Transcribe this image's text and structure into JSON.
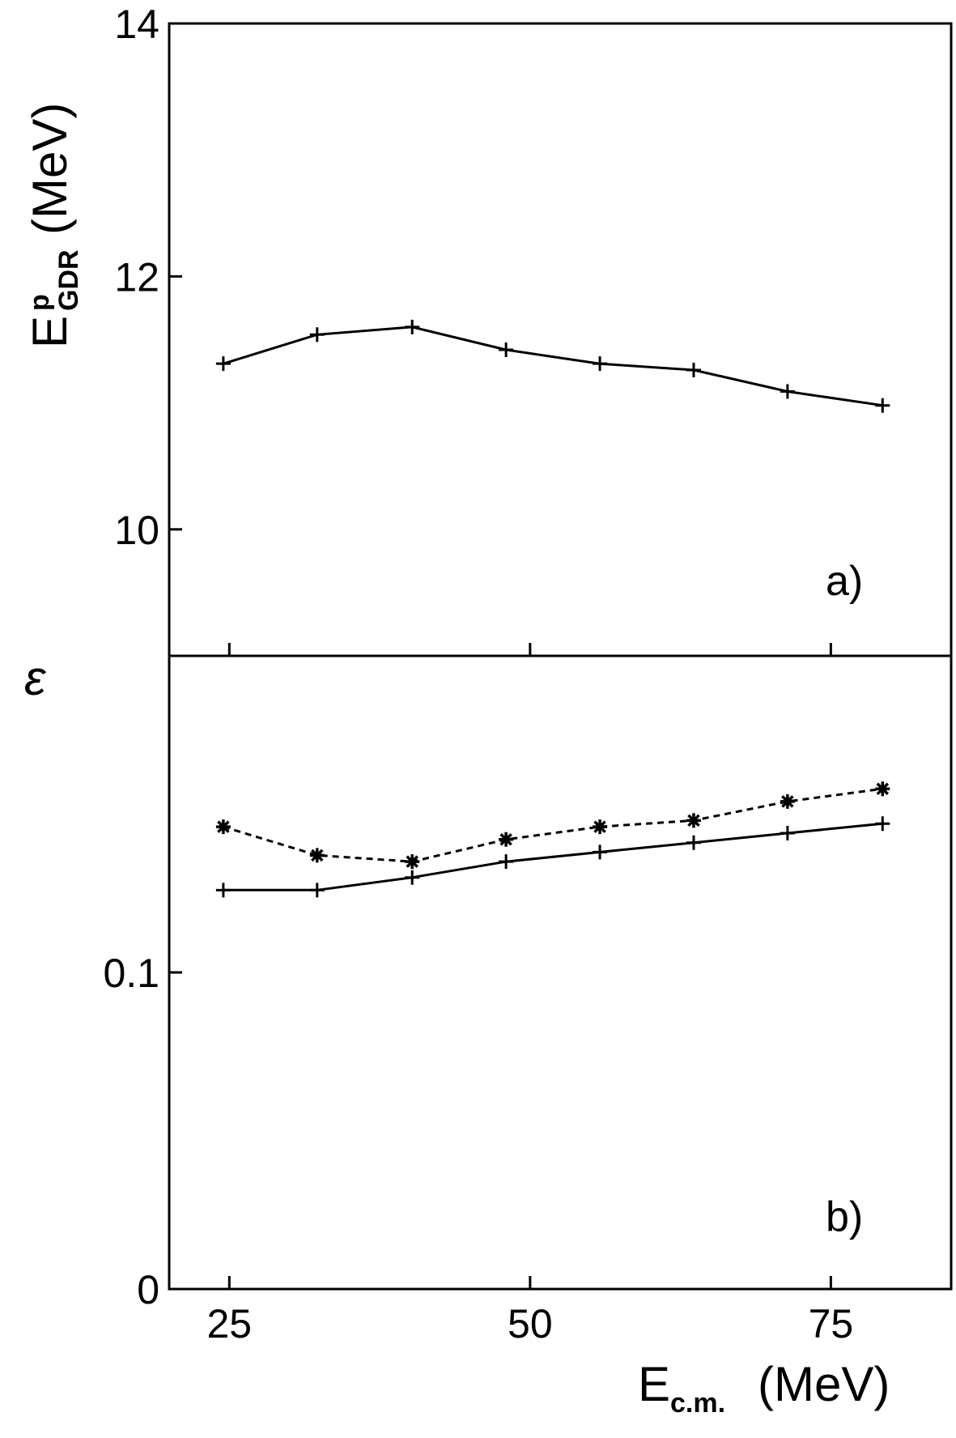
{
  "chart_data": [
    {
      "panel": "a)",
      "type": "line",
      "ylabel": {
        "main": "E",
        "superscript": "p",
        "subscript": "GDR",
        "unit": "(MeV)"
      },
      "ylim": [
        9,
        14
      ],
      "yticks": [
        10,
        12,
        14
      ],
      "ytick_labels": [
        "10",
        "12",
        "14"
      ],
      "xlim": [
        20,
        85
      ],
      "xticks": [
        25,
        50,
        75
      ],
      "series": [
        {
          "marker": "plus",
          "line_style": "solid",
          "x": [
            24.5,
            32.3,
            40.2,
            48.0,
            55.8,
            63.6,
            71.4,
            79.3
          ],
          "y": [
            11.31,
            11.54,
            11.6,
            11.42,
            11.31,
            11.26,
            11.09,
            10.98
          ]
        }
      ]
    },
    {
      "panel": "b)",
      "type": "line",
      "ylabel": {
        "main": "ε"
      },
      "ylim": [
        0,
        0.2
      ],
      "yticks": [
        0,
        0.1
      ],
      "ytick_labels": [
        "0",
        "0.1"
      ],
      "xlim": [
        20,
        85
      ],
      "xticks": [
        25,
        50,
        75
      ],
      "xtick_labels": [
        "25",
        "50",
        "75"
      ],
      "xlabel": {
        "main": "E",
        "subscript": "c.m.",
        "unit": "(MeV)"
      },
      "series": [
        {
          "marker": "asterisk",
          "line_style": "dashed",
          "x": [
            24.5,
            32.3,
            40.2,
            48.0,
            55.8,
            63.6,
            71.4,
            79.3
          ],
          "y": [
            0.146,
            0.137,
            0.135,
            0.142,
            0.146,
            0.148,
            0.154,
            0.158
          ]
        },
        {
          "marker": "plus",
          "line_style": "solid",
          "x": [
            24.5,
            32.3,
            40.2,
            48.0,
            55.8,
            63.6,
            71.4,
            79.3
          ],
          "y": [
            0.126,
            0.126,
            0.13,
            0.135,
            0.138,
            0.141,
            0.144,
            0.147
          ]
        }
      ]
    }
  ]
}
